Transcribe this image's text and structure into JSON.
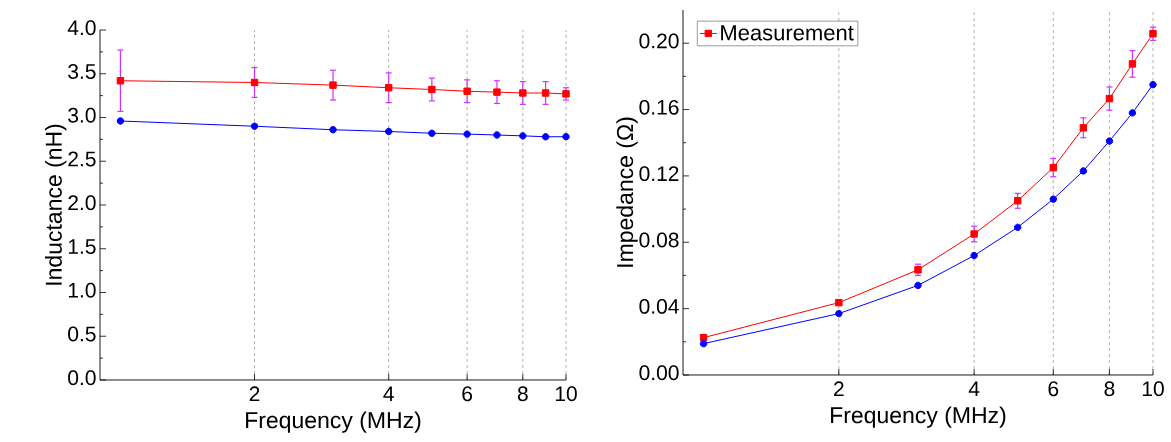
{
  "chart_data": [
    {
      "type": "line",
      "xlabel": "Frequency (MHz)",
      "ylabel": "Inductance (nH)",
      "x": [
        1,
        2,
        3,
        4,
        5,
        6,
        7,
        8,
        9,
        10
      ],
      "log": "x",
      "grid": "x",
      "legend": false,
      "xlim": [
        0.9,
        10
      ],
      "xticks": [
        2,
        4,
        6,
        8,
        10
      ],
      "ylim": [
        0,
        4
      ],
      "yticks": [
        {
          "value": 0,
          "label": "0.0"
        },
        {
          "value": 0.5,
          "label": "0.5"
        },
        {
          "value": 1,
          "label": "1.0"
        },
        {
          "value": 1.5,
          "label": "1.5"
        },
        {
          "value": 2,
          "label": "2.0"
        },
        {
          "value": 2.5,
          "label": "2.5"
        },
        {
          "value": 3,
          "label": "3.0"
        },
        {
          "value": 3.5,
          "label": "3.5"
        },
        {
          "value": 4,
          "label": "4.0"
        }
      ],
      "series": [
        {
          "color": "#ff0000",
          "marker": "square",
          "values": [
            3.42,
            3.4,
            3.37,
            3.34,
            3.32,
            3.3,
            3.29,
            3.28,
            3.28,
            3.27
          ],
          "errors": [
            0.35,
            0.17,
            0.17,
            0.17,
            0.13,
            0.13,
            0.13,
            0.13,
            0.13,
            0.07
          ]
        },
        {
          "color": "#0000ff",
          "marker": "circle",
          "values": [
            2.96,
            2.9,
            2.86,
            2.84,
            2.82,
            2.81,
            2.8,
            2.79,
            2.78,
            2.78
          ]
        }
      ]
    },
    {
      "type": "line",
      "xlabel": "Frequency (MHz)",
      "ylabel": "Impedance (Ω)",
      "x": [
        1,
        2,
        3,
        4,
        5,
        6,
        7,
        8,
        9,
        10
      ],
      "log": "x",
      "grid": "x",
      "legend": "top left",
      "xlim": [
        0.9,
        10
      ],
      "xticks": [
        2,
        4,
        6,
        8,
        10
      ],
      "ylim": [
        0,
        0.22
      ],
      "yticks": [
        {
          "value": 0,
          "label": "0.00"
        },
        {
          "value": 0.04,
          "label": "0.04"
        },
        {
          "value": 0.08,
          "label": "0.08"
        },
        {
          "value": 0.12,
          "label": "0.12"
        },
        {
          "value": 0.16,
          "label": "0.16"
        },
        {
          "value": 0.2,
          "label": "0.20"
        }
      ],
      "series": [
        {
          "name": "Measurement",
          "color": "#ff0000",
          "marker": "square",
          "values": [
            0.0225,
            0.0436,
            0.0634,
            0.085,
            0.105,
            0.125,
            0.149,
            0.1666,
            0.1875,
            0.2057
          ],
          "errors": [
            null,
            null,
            0.0034,
            0.0047,
            0.0045,
            0.0055,
            0.006,
            0.007,
            0.008,
            0.004
          ]
        },
        {
          "color": "#0000ff",
          "marker": "circle",
          "values": [
            0.0189,
            0.037,
            0.054,
            0.072,
            0.089,
            0.106,
            0.123,
            0.141,
            0.158,
            0.175
          ]
        }
      ]
    }
  ]
}
